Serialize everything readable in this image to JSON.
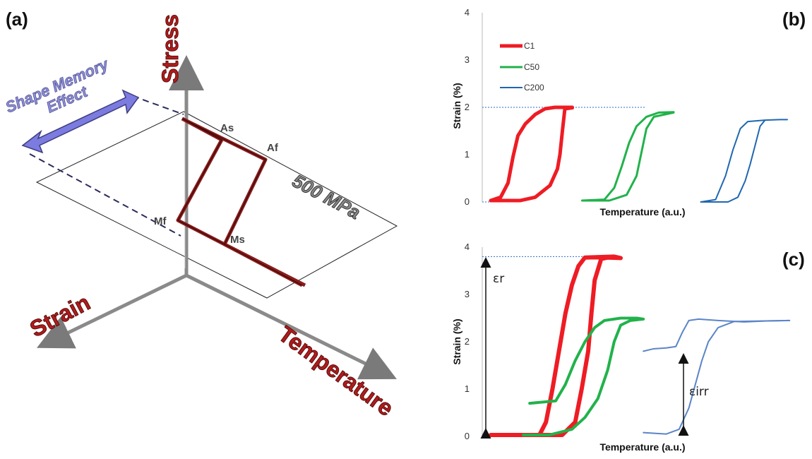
{
  "panels": {
    "a": {
      "label": "(a)",
      "axis_stress": "Stress",
      "axis_strain": "Strain",
      "axis_temperature": "Temperature",
      "effect_line1": "Shape Memory",
      "effect_line2": "Effect",
      "plane_label": "500 MPa",
      "points": {
        "as": "As",
        "af": "Af",
        "mf": "Mf",
        "ms": "Ms"
      },
      "colors": {
        "loop": "#8a1c1c",
        "arrow": "#7b7be0",
        "axis": "#808080"
      }
    },
    "b": {
      "label": "(b)"
    },
    "c": {
      "label": "(c)",
      "annotation_er": "εr",
      "annotation_eirr": "εirr"
    }
  },
  "chart_data": [
    {
      "type": "line",
      "panel": "b",
      "xlabel": "Temperature (a.u.)",
      "ylabel": "Strain (%)",
      "ylim": [
        0,
        4
      ],
      "yticks": [
        "0",
        "1",
        "2",
        "3",
        "4"
      ],
      "legend": "top-left",
      "reference_line_y": 2,
      "series": [
        {
          "name": "C1",
          "color": "#ee1c24",
          "loop": [
            [
              0,
              0.03
            ],
            [
              4,
              0.1
            ],
            [
              7,
              0.4
            ],
            [
              9,
              0.95
            ],
            [
              11,
              1.4
            ],
            [
              14,
              1.65
            ],
            [
              18,
              1.85
            ],
            [
              22,
              1.97
            ],
            [
              26,
              2.0
            ],
            [
              33,
              2.0
            ],
            [
              33,
              1.99
            ],
            [
              30,
              1.97
            ],
            [
              29,
              1.5
            ],
            [
              28,
              1.0
            ],
            [
              27,
              0.7
            ],
            [
              24,
              0.35
            ],
            [
              18,
              0.1
            ],
            [
              12,
              0.03
            ],
            [
              0,
              0.03
            ]
          ]
        },
        {
          "name": "C50",
          "color": "#21b24b",
          "loop": [
            [
              37,
              0.03
            ],
            [
              46,
              0.05
            ],
            [
              50,
              0.3
            ],
            [
              53,
              0.75
            ],
            [
              56,
              1.25
            ],
            [
              59,
              1.6
            ],
            [
              63,
              1.8
            ],
            [
              68,
              1.89
            ],
            [
              74,
              1.9
            ],
            [
              74,
              1.89
            ],
            [
              66,
              1.8
            ],
            [
              63,
              1.55
            ],
            [
              61,
              1.05
            ],
            [
              59,
              0.55
            ],
            [
              55,
              0.15
            ],
            [
              48,
              0.03
            ],
            [
              37,
              0.03
            ]
          ]
        },
        {
          "name": "C200",
          "color": "#2067b0",
          "loop": [
            [
              85,
              0.0
            ],
            [
              91,
              0.05
            ],
            [
              95,
              0.55
            ],
            [
              98,
              1.1
            ],
            [
              101,
              1.55
            ],
            [
              104,
              1.7
            ],
            [
              111,
              1.73
            ],
            [
              117,
              1.74
            ],
            [
              120,
              1.74
            ],
            [
              117,
              1.74
            ],
            [
              111,
              1.73
            ],
            [
              109,
              1.6
            ],
            [
              107,
              1.2
            ],
            [
              105,
              0.8
            ],
            [
              103,
              0.45
            ],
            [
              100,
              0.1
            ],
            [
              96,
              0.0
            ],
            [
              85,
              0.0
            ]
          ]
        }
      ]
    },
    {
      "type": "line",
      "panel": "c",
      "xlabel": "Temperature (a.u.)",
      "ylabel": "Strain (%)",
      "ylim": [
        0,
        4
      ],
      "yticks": [
        "0",
        "1",
        "2",
        "3",
        "4"
      ],
      "reference_line_y": 3.8,
      "series": [
        {
          "color": "#ee1c24",
          "loop": [
            [
              0,
              0.03
            ],
            [
              15,
              0.03
            ],
            [
              17,
              0.3
            ],
            [
              19,
              1.0
            ],
            [
              21,
              1.8
            ],
            [
              23,
              2.6
            ],
            [
              25,
              3.2
            ],
            [
              27,
              3.6
            ],
            [
              29,
              3.78
            ],
            [
              38,
              3.8
            ],
            [
              40,
              3.77
            ],
            [
              36,
              3.78
            ],
            [
              34,
              3.75
            ],
            [
              32,
              3.3
            ],
            [
              31,
              2.6
            ],
            [
              30,
              1.8
            ],
            [
              28,
              1.0
            ],
            [
              26,
              0.3
            ],
            [
              22,
              0.03
            ],
            [
              0,
              0.03
            ]
          ]
        },
        {
          "color": "#21b24b",
          "loop": [
            [
              12,
              0.7
            ],
            [
              20,
              0.75
            ],
            [
              23,
              1.1
            ],
            [
              26,
              1.6
            ],
            [
              29,
              2.0
            ],
            [
              32,
              2.3
            ],
            [
              35,
              2.45
            ],
            [
              40,
              2.5
            ],
            [
              45,
              2.5
            ],
            [
              47,
              2.48
            ],
            [
              43,
              2.45
            ],
            [
              40,
              2.35
            ],
            [
              38,
              2.0
            ],
            [
              36,
              1.4
            ],
            [
              33,
              0.8
            ],
            [
              29,
              0.4
            ],
            [
              25,
              0.15
            ],
            [
              18,
              0.03
            ],
            [
              10,
              0.03
            ]
          ]
        },
        {
          "color": "#5b85c8",
          "line": [
            [
              47,
              1.8
            ],
            [
              50,
              1.85
            ],
            [
              54,
              1.87
            ],
            [
              57,
              1.9
            ],
            [
              59,
              2.2
            ],
            [
              61,
              2.45
            ],
            [
              64,
              2.48
            ],
            [
              70,
              2.45
            ],
            [
              78,
              2.42
            ],
            [
              85,
              2.44
            ],
            [
              92,
              2.45
            ]
          ]
        },
        {
          "color": "#5b85c8",
          "line": [
            [
              47,
              0.08
            ],
            [
              54,
              0.05
            ],
            [
              58,
              0.15
            ],
            [
              61,
              0.6
            ],
            [
              63,
              1.1
            ],
            [
              65,
              1.6
            ],
            [
              67,
              2.0
            ],
            [
              70,
              2.3
            ],
            [
              75,
              2.43
            ],
            [
              92,
              2.45
            ]
          ]
        }
      ]
    }
  ]
}
